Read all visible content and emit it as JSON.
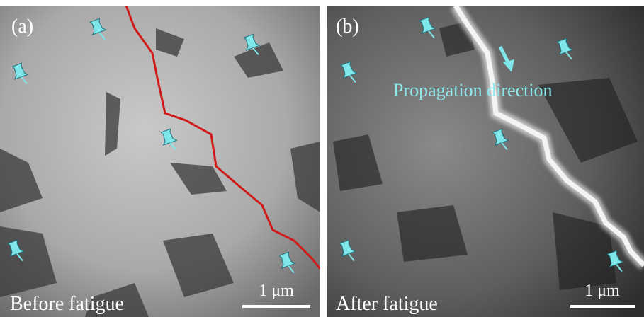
{
  "panels": [
    {
      "label": "(a)",
      "caption": "Before fatigue",
      "scale_bar": "1 μm"
    },
    {
      "label": "(b)",
      "caption": "After fatigue",
      "scale_bar": "1 μm",
      "annotation": "Propagation direction"
    }
  ]
}
